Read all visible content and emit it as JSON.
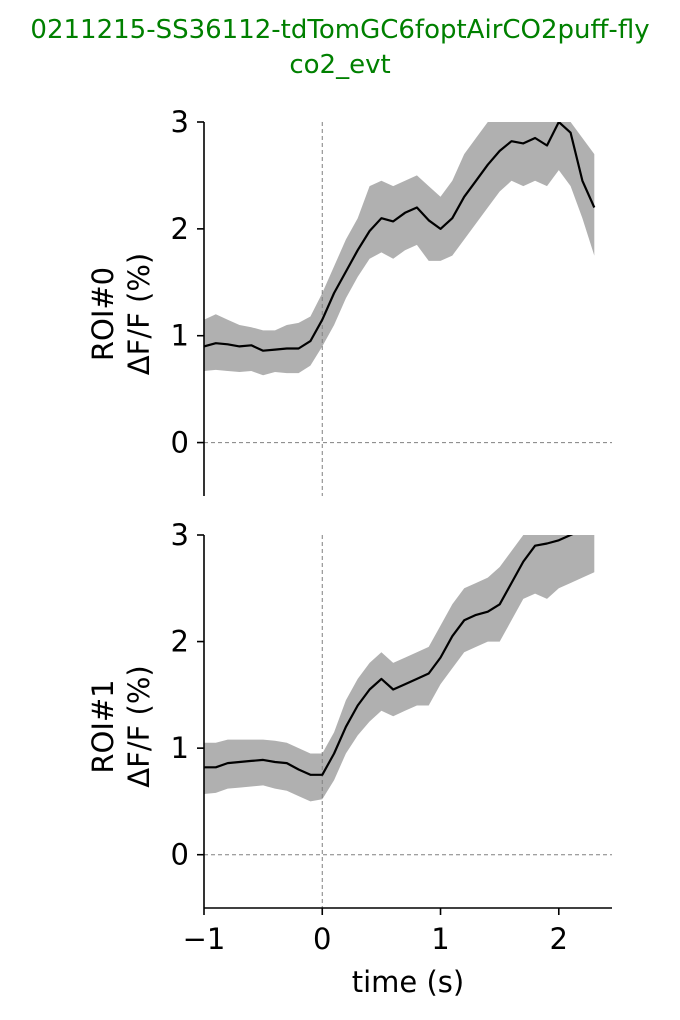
{
  "figure": {
    "title_line1": "0211215-SS36112-tdTomGC6foptAirCO2puff-fly",
    "title_line2": "co2_evt",
    "title_color": "#008000"
  },
  "chart_data": [
    {
      "type": "line",
      "ylabel_line1": "ROI#0",
      "ylabel_line2": "ΔF/F (%)",
      "xlabel": "",
      "xlim": [
        -1,
        2.45
      ],
      "ylim": [
        -0.5,
        3
      ],
      "yticks": [
        0,
        1,
        2,
        3
      ],
      "xticks": [],
      "reference_lines": {
        "x": 0,
        "y": 0
      },
      "line_color": "#000000",
      "band_color": "#b0b0b0",
      "x": [
        -1.0,
        -0.9,
        -0.8,
        -0.7,
        -0.6,
        -0.5,
        -0.4,
        -0.3,
        -0.2,
        -0.1,
        0.0,
        0.1,
        0.2,
        0.3,
        0.4,
        0.5,
        0.6,
        0.7,
        0.8,
        0.9,
        1.0,
        1.1,
        1.2,
        1.3,
        1.4,
        1.5,
        1.6,
        1.7,
        1.8,
        1.9,
        2.0,
        2.1,
        2.2,
        2.3
      ],
      "mean": [
        0.9,
        0.93,
        0.92,
        0.9,
        0.91,
        0.86,
        0.87,
        0.88,
        0.88,
        0.95,
        1.15,
        1.4,
        1.6,
        1.8,
        1.98,
        2.1,
        2.07,
        2.15,
        2.2,
        2.08,
        2.0,
        2.1,
        2.3,
        2.45,
        2.6,
        2.73,
        2.82,
        2.8,
        2.85,
        2.78,
        3.0,
        2.9,
        2.45,
        2.2
      ],
      "upper": [
        1.15,
        1.2,
        1.15,
        1.1,
        1.08,
        1.05,
        1.05,
        1.1,
        1.12,
        1.18,
        1.4,
        1.65,
        1.9,
        2.1,
        2.4,
        2.45,
        2.4,
        2.45,
        2.5,
        2.4,
        2.3,
        2.45,
        2.7,
        2.85,
        3.0,
        3.05,
        3.05,
        3.0,
        3.05,
        3.05,
        3.05,
        3.1,
        2.85,
        2.7
      ],
      "lower": [
        0.67,
        0.68,
        0.67,
        0.66,
        0.67,
        0.63,
        0.66,
        0.65,
        0.65,
        0.72,
        0.9,
        1.1,
        1.35,
        1.55,
        1.72,
        1.78,
        1.72,
        1.8,
        1.85,
        1.7,
        1.7,
        1.75,
        1.9,
        2.05,
        2.2,
        2.35,
        2.45,
        2.4,
        2.45,
        2.4,
        2.55,
        2.4,
        2.1,
        1.75
      ]
    },
    {
      "type": "line",
      "ylabel_line1": "ROI#1",
      "ylabel_line2": "ΔF/F (%)",
      "xlabel": "time (s)",
      "xlim": [
        -1,
        2.45
      ],
      "ylim": [
        -0.5,
        3
      ],
      "yticks": [
        0,
        1,
        2,
        3
      ],
      "xticks": [
        {
          "value": -1,
          "label": "−1"
        },
        {
          "value": 0,
          "label": "0"
        },
        {
          "value": 1,
          "label": "1"
        },
        {
          "value": 2,
          "label": "2"
        }
      ],
      "reference_lines": {
        "x": 0,
        "y": 0
      },
      "line_color": "#000000",
      "band_color": "#b0b0b0",
      "x": [
        -1.0,
        -0.9,
        -0.8,
        -0.7,
        -0.6,
        -0.5,
        -0.4,
        -0.3,
        -0.2,
        -0.1,
        0.0,
        0.1,
        0.2,
        0.3,
        0.4,
        0.5,
        0.6,
        0.7,
        0.8,
        0.9,
        1.0,
        1.1,
        1.2,
        1.3,
        1.4,
        1.5,
        1.6,
        1.7,
        1.8,
        1.9,
        2.0,
        2.1,
        2.2,
        2.3
      ],
      "mean": [
        0.82,
        0.82,
        0.86,
        0.87,
        0.88,
        0.89,
        0.87,
        0.86,
        0.8,
        0.75,
        0.75,
        0.95,
        1.2,
        1.4,
        1.55,
        1.65,
        1.55,
        1.6,
        1.65,
        1.7,
        1.85,
        2.05,
        2.2,
        2.25,
        2.28,
        2.35,
        2.55,
        2.75,
        2.9,
        2.92,
        2.95,
        3.0,
        3.05,
        3.05
      ],
      "upper": [
        1.05,
        1.05,
        1.08,
        1.08,
        1.08,
        1.08,
        1.07,
        1.05,
        1.0,
        0.95,
        0.95,
        1.15,
        1.45,
        1.65,
        1.8,
        1.9,
        1.8,
        1.85,
        1.9,
        1.95,
        2.15,
        2.35,
        2.5,
        2.55,
        2.6,
        2.7,
        2.85,
        3.05,
        3.05,
        3.05,
        3.05,
        3.05,
        3.05,
        3.05
      ],
      "lower": [
        0.57,
        0.58,
        0.62,
        0.63,
        0.64,
        0.65,
        0.62,
        0.6,
        0.55,
        0.5,
        0.52,
        0.7,
        0.95,
        1.12,
        1.25,
        1.35,
        1.3,
        1.35,
        1.4,
        1.4,
        1.6,
        1.75,
        1.9,
        1.95,
        2.0,
        2.0,
        2.2,
        2.4,
        2.45,
        2.4,
        2.5,
        2.55,
        2.6,
        2.65
      ]
    }
  ]
}
